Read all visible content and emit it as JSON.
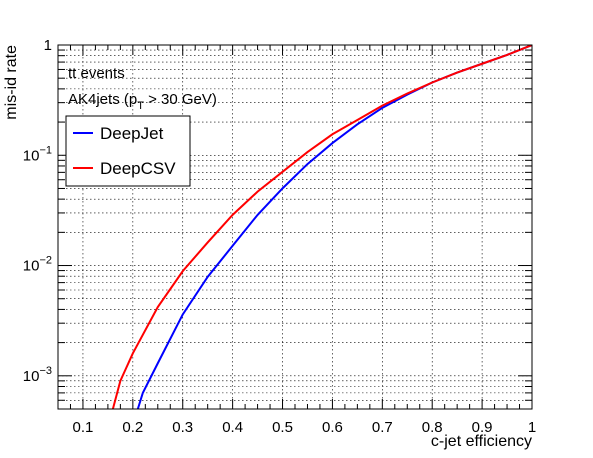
{
  "chart_data": {
    "type": "line",
    "xlabel": "c-jet efficiency",
    "ylabel": "mis-id rate",
    "xlim": [
      0.05,
      1.0
    ],
    "ylim": [
      0.0005,
      1.0
    ],
    "yscale": "log",
    "grid": true,
    "x_ticks": [
      "0.1",
      "0.2",
      "0.3",
      "0.4",
      "0.5",
      "0.6",
      "0.7",
      "0.8",
      "0.9",
      "1"
    ],
    "y_ticks": [
      {
        "value": 0.001,
        "base": "10",
        "exp": "−3"
      },
      {
        "value": 0.01,
        "base": "10",
        "exp": "−2"
      },
      {
        "value": 0.1,
        "base": "10",
        "exp": "−1"
      },
      {
        "value": 1,
        "label": "1"
      }
    ],
    "annotations": {
      "line1": "tt events",
      "line2_prefix": "AK4jets (p",
      "line2_sub": "T",
      "line2_suffix": " > 30 GeV)"
    },
    "legend_position": "upper-left",
    "series": [
      {
        "name": "DeepJet",
        "color": "#0000ff",
        "x": [
          0.2,
          0.21,
          0.22,
          0.25,
          0.3,
          0.35,
          0.4,
          0.45,
          0.5,
          0.55,
          0.6,
          0.65,
          0.7,
          0.75,
          0.8,
          0.85,
          0.9,
          0.95,
          1.0
        ],
        "y": [
          0.0004,
          0.0005,
          0.0007,
          0.0013,
          0.0036,
          0.0079,
          0.0151,
          0.0288,
          0.0501,
          0.0832,
          0.129,
          0.191,
          0.269,
          0.355,
          0.457,
          0.562,
          0.676,
          0.813,
          1.0
        ]
      },
      {
        "name": "DeepCSV",
        "color": "#ff0000",
        "x": [
          0.155,
          0.16,
          0.175,
          0.2,
          0.25,
          0.3,
          0.35,
          0.4,
          0.45,
          0.5,
          0.55,
          0.6,
          0.65,
          0.7,
          0.75,
          0.8,
          0.85,
          0.9,
          0.95,
          1.0
        ],
        "y": [
          0.00045,
          0.0005,
          0.0009,
          0.0016,
          0.0042,
          0.0089,
          0.0162,
          0.0288,
          0.0468,
          0.0708,
          0.107,
          0.155,
          0.209,
          0.282,
          0.363,
          0.457,
          0.562,
          0.676,
          0.813,
          1.0
        ]
      }
    ]
  }
}
